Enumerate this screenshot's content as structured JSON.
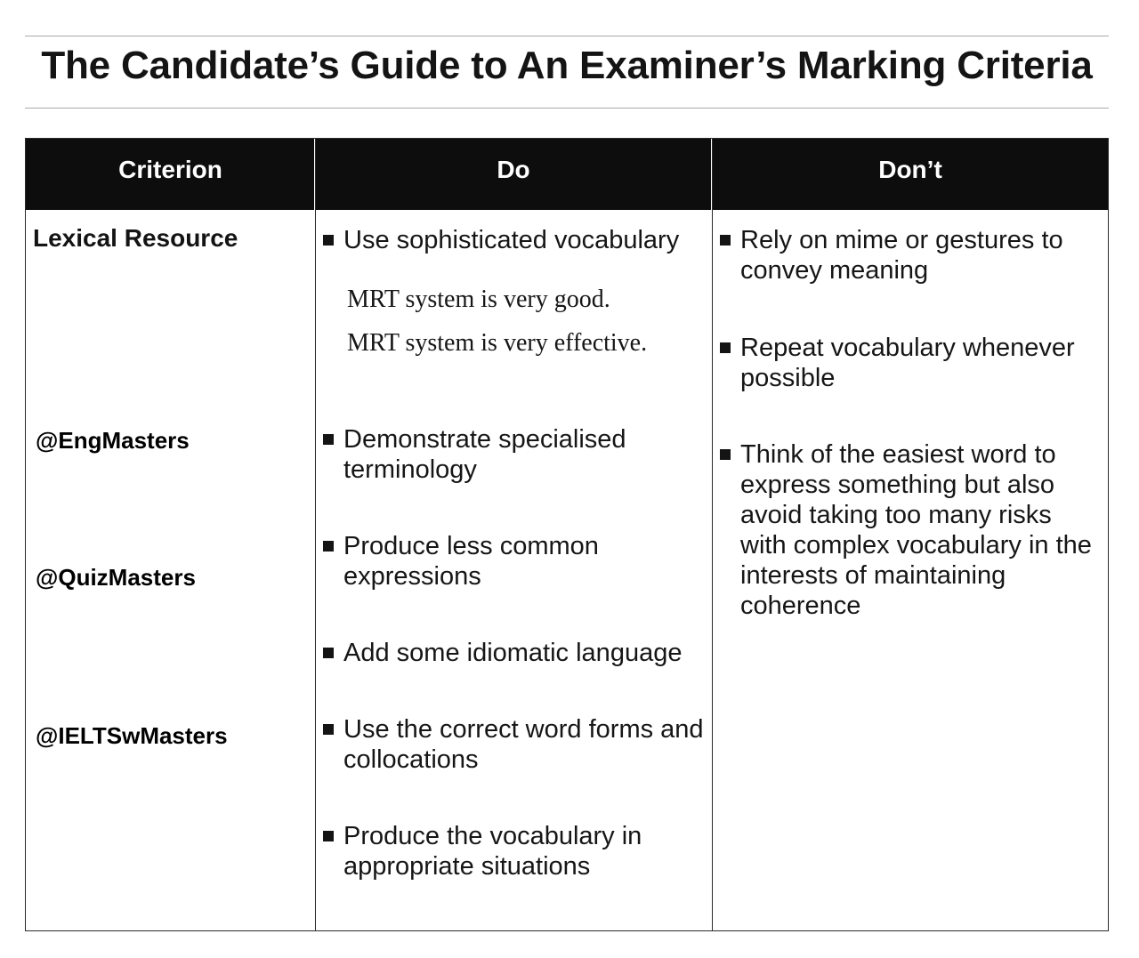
{
  "page": {
    "title": "The Candidate’s Guide to An Examiner’s Marking Criteria"
  },
  "table": {
    "headers": {
      "criterion": "Criterion",
      "do": "Do",
      "dont": "Don’t"
    },
    "criterion": "Lexical Resource",
    "watermarks": [
      "@EngMasters",
      "@QuizMasters",
      "@IELTSwMasters"
    ],
    "do_items": [
      "Use sophisticated vocabulary",
      "Demonstrate specialised terminology",
      "Produce less common expressions",
      "Add some idiomatic language",
      "Use the correct word forms and collocations",
      "Produce the vocabulary in appropriate situations"
    ],
    "examples": [
      "MRT system is very good.",
      "MRT system is very effective."
    ],
    "dont_items": [
      "Rely on mime or gestures to convey meaning",
      "Repeat vocabulary whenever possible",
      "Think of the easiest word to express something but also avoid taking too many risks with complex vocabulary in the interests of maintaining coherence"
    ]
  }
}
